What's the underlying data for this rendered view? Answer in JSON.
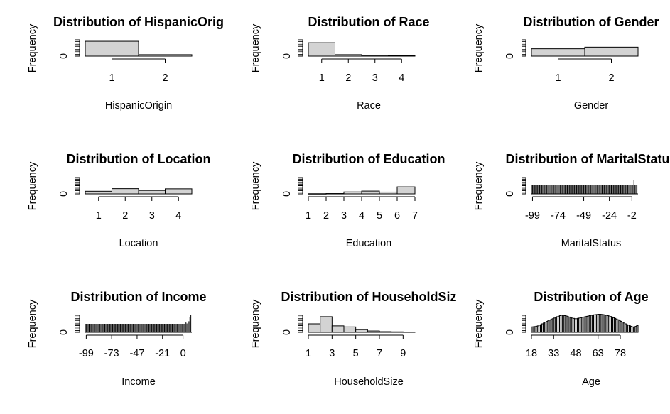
{
  "chart_data": [
    {
      "type": "bar",
      "title": "Distribution of HispanicOrig",
      "xlabel": "HispanicOrigin",
      "ylabel": "Frequency",
      "ytick_labels": [
        "0"
      ],
      "xtick_labels": [
        "1",
        "2"
      ],
      "xlim": [
        0.5,
        2.5
      ],
      "bin_edges": [
        0.5,
        1.5,
        2.5
      ],
      "values": [
        0.91,
        0.09
      ]
    },
    {
      "type": "bar",
      "title": "Distribution of Race",
      "xlabel": "Race",
      "ylabel": "Frequency",
      "ytick_labels": [
        "0"
      ],
      "xtick_labels": [
        "1",
        "2",
        "3",
        "4"
      ],
      "xlim": [
        0.5,
        4.5
      ],
      "bin_edges": [
        0.5,
        1.5,
        2.5,
        3.5,
        4.5
      ],
      "values": [
        0.82,
        0.09,
        0.05,
        0.04
      ]
    },
    {
      "type": "bar",
      "title": "Distribution of Gender",
      "xlabel": "Gender",
      "ylabel": "Frequency",
      "ytick_labels": [
        "0"
      ],
      "xtick_labels": [
        "1",
        "2"
      ],
      "xlim": [
        0.5,
        2.5
      ],
      "bin_edges": [
        0.5,
        1.5,
        2.5
      ],
      "values": [
        0.45,
        0.55
      ]
    },
    {
      "type": "bar",
      "title": "Distribution of Location",
      "xlabel": "Location",
      "ylabel": "Frequency",
      "ytick_labels": [
        "0"
      ],
      "xtick_labels": [
        "1",
        "2",
        "3",
        "4"
      ],
      "xlim": [
        0.5,
        4.5
      ],
      "bin_edges": [
        0.5,
        1.5,
        2.5,
        3.5,
        4.5
      ],
      "values": [
        0.16,
        0.32,
        0.21,
        0.31
      ]
    },
    {
      "type": "bar",
      "title": "Distribution of Education",
      "xlabel": "Education",
      "ylabel": "Frequency",
      "ytick_labels": [
        "0"
      ],
      "xtick_labels": [
        "1",
        "2",
        "3",
        "4",
        "5",
        "6",
        "7"
      ],
      "xlim": [
        1,
        7
      ],
      "bin_edges": [
        1,
        2,
        3,
        4,
        5,
        6,
        7
      ],
      "values": [
        0.01,
        0.02,
        0.12,
        0.17,
        0.11,
        0.43
      ]
    },
    {
      "type": "bar",
      "title": "Distribution of MaritalStatus",
      "xlabel": "MaritalStatus",
      "ylabel": "Frequency",
      "ytick_labels": [
        "0"
      ],
      "xtick_labels": [
        "-99",
        "-74",
        "-49",
        "-24",
        "-2"
      ],
      "xlim": [
        -100,
        5
      ],
      "bin_range": [
        -100,
        0
      ],
      "bin_count": 100,
      "extra_bins": [
        {
          "x0": 0,
          "x1": 1,
          "value": 0.85
        },
        {
          "x0": 1,
          "x1": 2,
          "value": 0.06
        },
        {
          "x0": 2,
          "x1": 3,
          "value": 0.15
        },
        {
          "x0": 3,
          "x1": 4,
          "value": 0.38
        }
      ]
    },
    {
      "type": "bar",
      "title": "Distribution of Income",
      "xlabel": "Income",
      "ylabel": "Frequency",
      "ytick_labels": [
        "0"
      ],
      "xtick_labels": [
        "-99",
        "-73",
        "-47",
        "-21",
        "0"
      ],
      "xlim": [
        -100,
        10
      ],
      "bin_range": [
        -100,
        0
      ],
      "bin_count": 100,
      "extra_bins": [
        {
          "x0": 0,
          "x1": 1,
          "value": 0.3
        },
        {
          "x0": 1,
          "x1": 2,
          "value": 0.45
        },
        {
          "x0": 2,
          "x1": 3,
          "value": 0.38
        },
        {
          "x0": 3,
          "x1": 4,
          "value": 0.58
        },
        {
          "x0": 4,
          "x1": 5,
          "value": 0.52
        },
        {
          "x0": 5,
          "x1": 6,
          "value": 0.72
        },
        {
          "x0": 6,
          "x1": 7,
          "value": 0.65
        },
        {
          "x0": 7,
          "x1": 8,
          "value": 0.88
        },
        {
          "x0": 8,
          "x1": 9,
          "value": 1.0
        }
      ]
    },
    {
      "type": "bar",
      "title": "Distribution of HouseholdSiz",
      "xlabel": "HouseholdSize",
      "ylabel": "Frequency",
      "ytick_labels": [
        "0"
      ],
      "xtick_labels": [
        "1",
        "3",
        "5",
        "7",
        "9"
      ],
      "xlim": [
        1,
        10
      ],
      "bin_edges": [
        1,
        2,
        3,
        4,
        5,
        6,
        7,
        8,
        9,
        10
      ],
      "values": [
        0.5,
        0.92,
        0.38,
        0.32,
        0.16,
        0.08,
        0.04,
        0.03,
        0.02
      ]
    },
    {
      "type": "bar",
      "title": "Distribution of Age",
      "xlabel": "Age",
      "ylabel": "Frequency",
      "ytick_labels": [
        "0"
      ],
      "xtick_labels": [
        "18",
        "33",
        "48",
        "63",
        "78"
      ],
      "xlim": [
        18,
        90
      ],
      "bin_edges_step": 1,
      "values": [
        0.32,
        0.33,
        0.34,
        0.36,
        0.38,
        0.42,
        0.45,
        0.5,
        0.55,
        0.6,
        0.64,
        0.68,
        0.72,
        0.76,
        0.8,
        0.84,
        0.88,
        0.92,
        0.95,
        0.98,
        1.0,
        1.0,
        0.98,
        0.96,
        0.93,
        0.9,
        0.87,
        0.84,
        0.82,
        0.8,
        0.8,
        0.82,
        0.84,
        0.86,
        0.88,
        0.9,
        0.92,
        0.94,
        0.96,
        0.98,
        1.0,
        1.02,
        1.03,
        1.04,
        1.05,
        1.06,
        1.06,
        1.05,
        1.04,
        1.02,
        1.0,
        0.98,
        0.96,
        0.93,
        0.9,
        0.86,
        0.82,
        0.78,
        0.74,
        0.7,
        0.65,
        0.6,
        0.55,
        0.5,
        0.45,
        0.42,
        0.38,
        0.35,
        0.32,
        0.3,
        0.35,
        0.4
      ]
    }
  ]
}
